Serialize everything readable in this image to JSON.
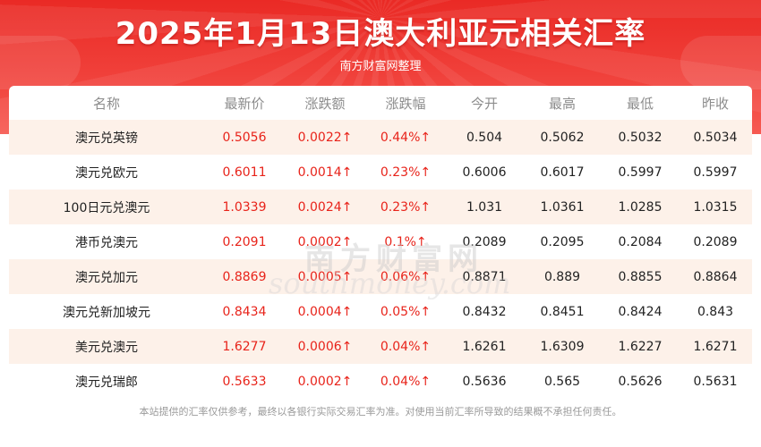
{
  "header": {
    "title": "2025年1月13日澳大利亚元相关汇率",
    "subtitle": "南方财富网整理"
  },
  "table": {
    "columns": [
      "名称",
      "最新价",
      "涨跌额",
      "涨跌幅",
      "今开",
      "最高",
      "最低",
      "昨收"
    ],
    "rows": [
      {
        "name": "澳元兑英镑",
        "latest": "0.5056",
        "change": "0.0022↑",
        "change_pct": "0.44%↑",
        "open": "0.504",
        "high": "0.5062",
        "low": "0.5032",
        "prev_close": "0.5034"
      },
      {
        "name": "澳元兑欧元",
        "latest": "0.6011",
        "change": "0.0014↑",
        "change_pct": "0.23%↑",
        "open": "0.6006",
        "high": "0.6017",
        "low": "0.5997",
        "prev_close": "0.5997"
      },
      {
        "name": "100日元兑澳元",
        "latest": "1.0339",
        "change": "0.0024↑",
        "change_pct": "0.23%↑",
        "open": "1.031",
        "high": "1.0361",
        "low": "1.0285",
        "prev_close": "1.0315"
      },
      {
        "name": "港币兑澳元",
        "latest": "0.2091",
        "change": "0.0002↑",
        "change_pct": "0.1%↑",
        "open": "0.2089",
        "high": "0.2095",
        "low": "0.2084",
        "prev_close": "0.2089"
      },
      {
        "name": "澳元兑加元",
        "latest": "0.8869",
        "change": "0.0005↑",
        "change_pct": "0.06%↑",
        "open": "0.8871",
        "high": "0.889",
        "low": "0.8855",
        "prev_close": "0.8864"
      },
      {
        "name": "澳元兑新加坡元",
        "latest": "0.8434",
        "change": "0.0004↑",
        "change_pct": "0.05%↑",
        "open": "0.8432",
        "high": "0.8451",
        "low": "0.8424",
        "prev_close": "0.843"
      },
      {
        "name": "美元兑澳元",
        "latest": "1.6277",
        "change": "0.0006↑",
        "change_pct": "0.04%↑",
        "open": "1.6261",
        "high": "1.6309",
        "low": "1.6227",
        "prev_close": "1.6271"
      },
      {
        "name": "澳元兑瑞郎",
        "latest": "0.5633",
        "change": "0.0002↑",
        "change_pct": "0.04%↑",
        "open": "0.5636",
        "high": "0.565",
        "low": "0.5626",
        "prev_close": "0.5631"
      }
    ]
  },
  "watermark": {
    "chinese": "南方财富网",
    "english": "southmoney.com"
  },
  "footer": {
    "disclaimer": "本站提供的汇率仅供参考，最终以各银行实际交易汇率为准。对使用当前汇率所导致的结果概不承担任何责任。"
  },
  "colors": {
    "header_red": "#ea2a25",
    "up_red": "#e8231a",
    "stripe": "#fdf1e9"
  }
}
